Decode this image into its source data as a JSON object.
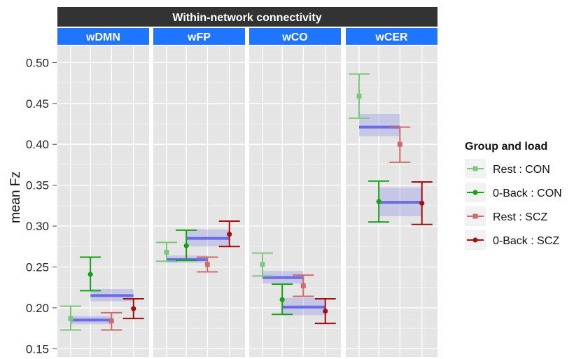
{
  "chart_data": {
    "type": "scatter",
    "title": "Within-network connectivity",
    "ylabel": "mean Fz",
    "ylim": [
      0.14,
      0.52
    ],
    "yticks": [
      0.15,
      0.2,
      0.25,
      0.3,
      0.35,
      0.4,
      0.45,
      0.5
    ],
    "ytick_labels": [
      "0.15",
      "0.20",
      "0.25",
      "0.30",
      "0.35",
      "0.40",
      "0.45",
      "0.50"
    ],
    "grid": true,
    "legend": {
      "title": "Group and load",
      "placement": "right",
      "entries": [
        {
          "label": "Rest : CON",
          "color": "#7ec87e"
        },
        {
          "label": "0-Back : CON",
          "color": "#13a313"
        },
        {
          "label": "Rest : SCZ",
          "color": "#cf6b6b"
        },
        {
          "label": "0-Back : SCZ",
          "color": "#a30e0e"
        }
      ]
    },
    "colors": {
      "header_bg": "#333333",
      "facet_bg": "#1f75fe",
      "panel_bg": "#e5e5e5",
      "band_fill": "#8b8be6",
      "band_line": "#5b5be6"
    },
    "facets": [
      {
        "name": "wDMN",
        "points": [
          {
            "series": 0,
            "mean": 0.187,
            "lo": 0.173,
            "hi": 0.202
          },
          {
            "series": 1,
            "mean": 0.241,
            "lo": 0.221,
            "hi": 0.262
          },
          {
            "series": 2,
            "mean": 0.184,
            "lo": 0.173,
            "hi": 0.194
          },
          {
            "series": 3,
            "mean": 0.199,
            "lo": 0.187,
            "hi": 0.211
          }
        ],
        "bands": [
          {
            "label": "Rest",
            "mean": 0.185,
            "lo": 0.18,
            "hi": 0.19
          },
          {
            "label": "0-Back",
            "mean": 0.215,
            "lo": 0.208,
            "hi": 0.223
          }
        ]
      },
      {
        "name": "wFP",
        "points": [
          {
            "series": 0,
            "mean": 0.268,
            "lo": 0.257,
            "hi": 0.28
          },
          {
            "series": 1,
            "mean": 0.276,
            "lo": 0.258,
            "hi": 0.295
          },
          {
            "series": 2,
            "mean": 0.253,
            "lo": 0.244,
            "hi": 0.262
          },
          {
            "series": 3,
            "mean": 0.29,
            "lo": 0.275,
            "hi": 0.306
          }
        ],
        "bands": [
          {
            "label": "Rest",
            "mean": 0.259,
            "lo": 0.255,
            "hi": 0.264
          },
          {
            "label": "0-Back",
            "mean": 0.285,
            "lo": 0.275,
            "hi": 0.296
          }
        ]
      },
      {
        "name": "wCO",
        "points": [
          {
            "series": 0,
            "mean": 0.253,
            "lo": 0.239,
            "hi": 0.267
          },
          {
            "series": 1,
            "mean": 0.21,
            "lo": 0.192,
            "hi": 0.229
          },
          {
            "series": 2,
            "mean": 0.227,
            "lo": 0.214,
            "hi": 0.24
          },
          {
            "series": 3,
            "mean": 0.196,
            "lo": 0.181,
            "hi": 0.211
          }
        ],
        "bands": [
          {
            "label": "Rest",
            "mean": 0.237,
            "lo": 0.23,
            "hi": 0.245
          },
          {
            "label": "0-Back",
            "mean": 0.201,
            "lo": 0.191,
            "hi": 0.212
          }
        ]
      },
      {
        "name": "wCER",
        "points": [
          {
            "series": 0,
            "mean": 0.459,
            "lo": 0.432,
            "hi": 0.486
          },
          {
            "series": 1,
            "mean": 0.33,
            "lo": 0.305,
            "hi": 0.355
          },
          {
            "series": 2,
            "mean": 0.4,
            "lo": 0.378,
            "hi": 0.421
          },
          {
            "series": 3,
            "mean": 0.328,
            "lo": 0.302,
            "hi": 0.354
          }
        ],
        "bands": [
          {
            "label": "Rest",
            "mean": 0.421,
            "lo": 0.41,
            "hi": 0.437
          },
          {
            "label": "0-Back",
            "mean": 0.329,
            "lo": 0.312,
            "hi": 0.347
          }
        ]
      }
    ]
  }
}
